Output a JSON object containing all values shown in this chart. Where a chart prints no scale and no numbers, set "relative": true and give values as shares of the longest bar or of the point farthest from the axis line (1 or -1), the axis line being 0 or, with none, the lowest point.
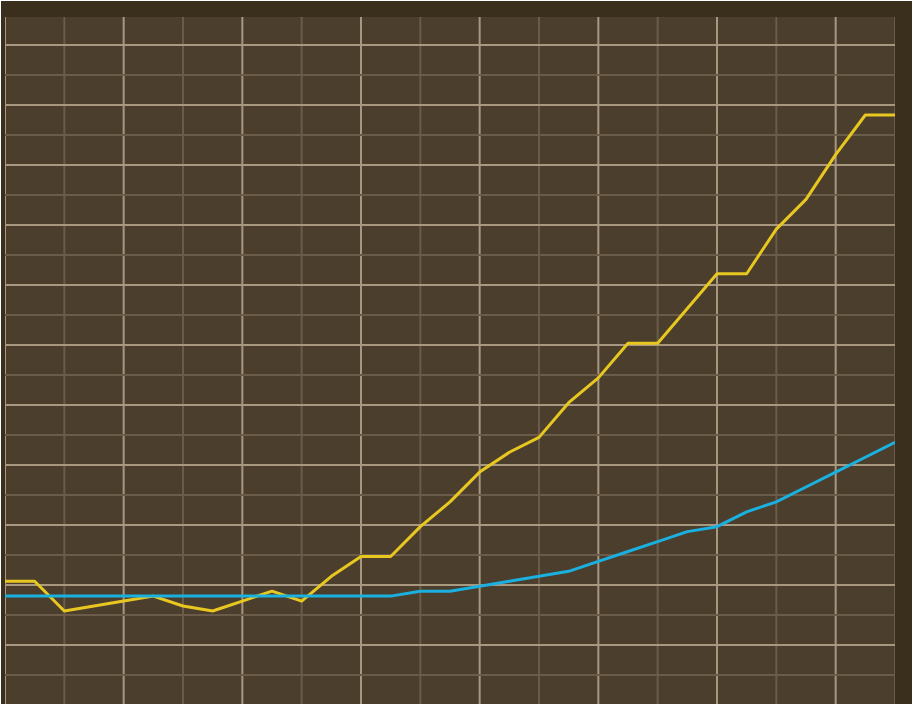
{
  "chart_data": {
    "type": "line",
    "relative": true,
    "grid": true,
    "categories": [
      null,
      null,
      null,
      null,
      null,
      null,
      null,
      null,
      null,
      null,
      null,
      null,
      null,
      null,
      null,
      null,
      null,
      null,
      null,
      null,
      null,
      null,
      null,
      null,
      null,
      null,
      null,
      null,
      null,
      null,
      null
    ],
    "series": [
      {
        "color": "#e8c820",
        "values": [
          0.06,
          0.06,
          0.0,
          0.01,
          0.02,
          0.03,
          0.01,
          0.0,
          0.02,
          0.04,
          0.02,
          0.07,
          0.11,
          0.11,
          0.17,
          0.22,
          0.28,
          0.32,
          0.35,
          0.42,
          0.47,
          0.54,
          0.54,
          0.61,
          0.68,
          0.68,
          0.77,
          0.83,
          0.92,
          1.0,
          1.0
        ]
      },
      {
        "color": "#1ab0e0",
        "values": [
          0.03,
          0.03,
          0.03,
          0.03,
          0.03,
          0.03,
          0.03,
          0.03,
          0.03,
          0.03,
          0.03,
          0.03,
          0.03,
          0.03,
          0.04,
          0.04,
          0.05,
          0.06,
          0.07,
          0.08,
          0.1,
          0.12,
          0.14,
          0.16,
          0.17,
          0.2,
          0.22,
          0.25,
          0.28,
          0.31,
          0.34
        ]
      }
    ]
  }
}
